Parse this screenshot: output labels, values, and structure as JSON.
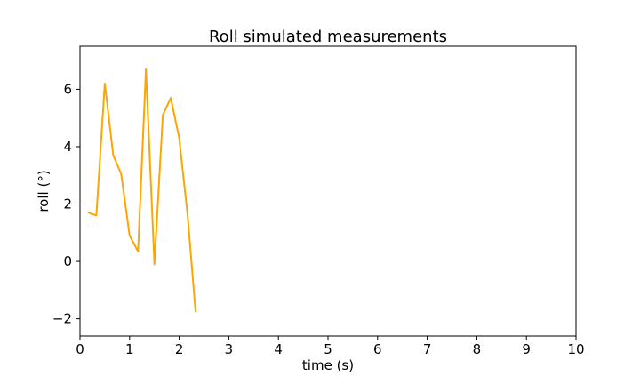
{
  "chart_data": {
    "type": "line",
    "title": "Roll simulated measurements",
    "xlabel": "time (s)",
    "ylabel": "roll (°)",
    "xlim": [
      0,
      10
    ],
    "ylim": [
      -2.6,
      7.5
    ],
    "xticks": [
      0,
      1,
      2,
      3,
      4,
      5,
      6,
      7,
      8,
      9,
      10
    ],
    "yticks": [
      -2,
      0,
      2,
      4,
      6
    ],
    "ytick_labels": [
      "−2",
      "0",
      "2",
      "4",
      "6"
    ],
    "grid": false,
    "series": [
      {
        "color": "#ffa500",
        "x": [
          0.17,
          0.33,
          0.5,
          0.67,
          0.83,
          1.0,
          1.17,
          1.33,
          1.5,
          1.67,
          1.83,
          2.0,
          2.17,
          2.33
        ],
        "y": [
          1.7,
          1.6,
          6.2,
          3.7,
          3.05,
          0.9,
          0.35,
          6.7,
          -0.1,
          5.1,
          5.7,
          4.3,
          1.6,
          -1.75
        ]
      }
    ]
  }
}
